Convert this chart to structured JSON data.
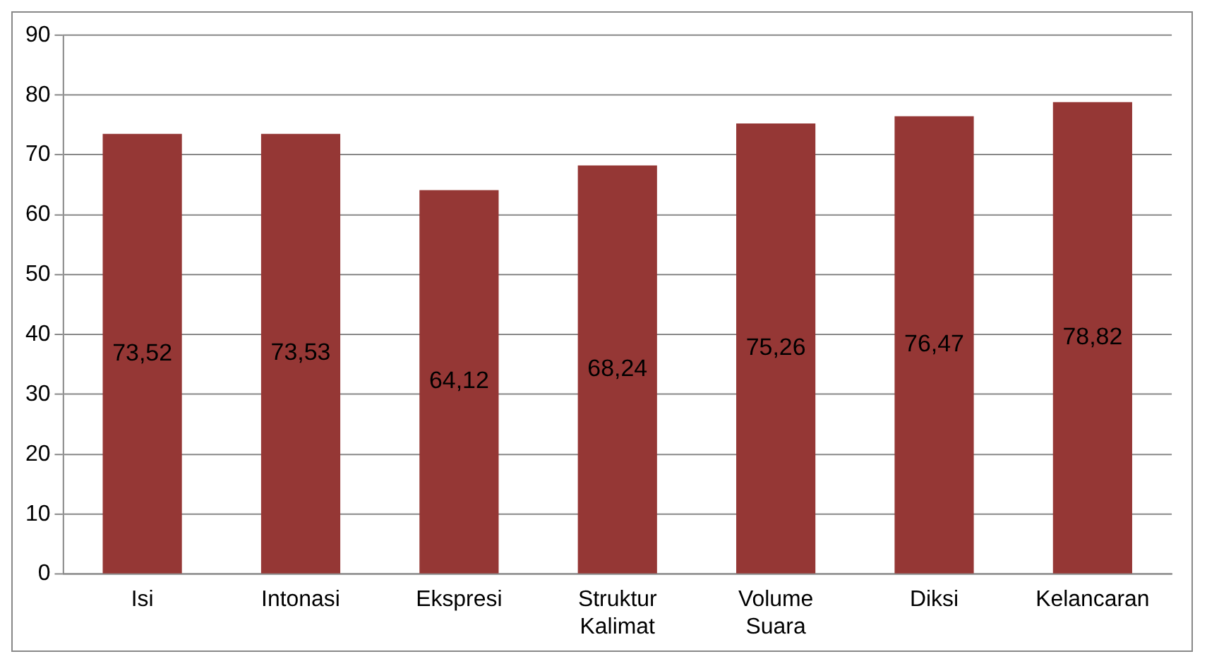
{
  "chart_data": {
    "type": "bar",
    "categories": [
      "Isi",
      "Intonasi",
      "Ekspresi",
      "Struktur Kalimat",
      "Volume Suara",
      "Diksi",
      "Kelancaran"
    ],
    "values": [
      73.52,
      73.53,
      64.12,
      68.24,
      75.26,
      76.47,
      78.82
    ],
    "value_labels": [
      "73,52",
      "73,53",
      "64,12",
      "68,24",
      "75,26",
      "76,47",
      "78,82"
    ],
    "color": "#953735",
    "ylim": [
      0,
      90
    ],
    "yticks": [
      0,
      10,
      20,
      30,
      40,
      50,
      60,
      70,
      80,
      90
    ],
    "grid": "y",
    "legend": false
  }
}
